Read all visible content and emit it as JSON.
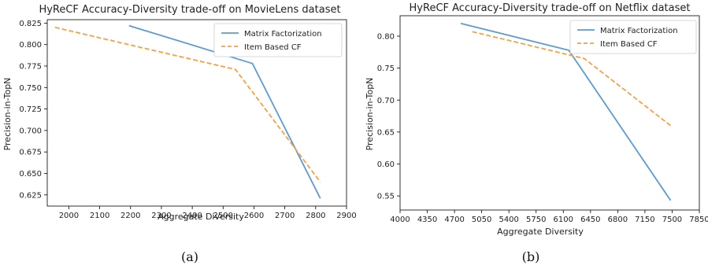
{
  "captions": [
    "(a)",
    "(b)"
  ],
  "chart_data": [
    {
      "type": "line",
      "title": "HyReCF Accuracy-Diversity trade-off on MovieLens dataset",
      "xlabel": "Aggregate Diversity",
      "ylabel": "Precision-in-TopN",
      "xlim": [
        1930,
        2900
      ],
      "ylim": [
        0.612,
        0.829
      ],
      "xticks": [
        2000,
        2100,
        2200,
        2300,
        2400,
        2500,
        2600,
        2700,
        2800,
        2900
      ],
      "yticks": [
        0.625,
        0.65,
        0.675,
        0.7,
        0.725,
        0.75,
        0.775,
        0.8,
        0.825
      ],
      "xtick_labels": [
        "2000",
        "2100",
        "2200",
        "2300",
        "2400",
        "2500",
        "2600",
        "2700",
        "2800",
        "2900"
      ],
      "ytick_labels": [
        "0.625",
        "0.650",
        "0.675",
        "0.700",
        "0.725",
        "0.750",
        "0.775",
        "0.800",
        "0.825"
      ],
      "legend": "top-right",
      "grid": false,
      "series": [
        {
          "name": "Matrix Factorization",
          "color": "#5b9bd5",
          "dash": "solid",
          "x": [
            2195,
            2595,
            2815
          ],
          "y": [
            0.822,
            0.778,
            0.621
          ]
        },
        {
          "name": "Item Based CF",
          "color": "#f5a142",
          "dash": "dashed",
          "x": [
            1955,
            2540,
            2815
          ],
          "y": [
            0.82,
            0.771,
            0.64
          ]
        }
      ]
    },
    {
      "type": "line",
      "title": "HyReCF Accuracy-Diversity trade-off on Netflix dataset",
      "xlabel": "Aggregate Diversity",
      "ylabel": "Precision-in-TopN",
      "xlim": [
        4000,
        7850
      ],
      "ylim": [
        0.528,
        0.832
      ],
      "xticks": [
        4000,
        4350,
        4700,
        5050,
        5400,
        5750,
        6100,
        6450,
        6800,
        7150,
        7500,
        7850
      ],
      "yticks": [
        0.55,
        0.6,
        0.65,
        0.7,
        0.75,
        0.8
      ],
      "xtick_labels": [
        "4000",
        "4350",
        "4700",
        "5050",
        "5400",
        "5750",
        "6100",
        "6450",
        "6800",
        "7150",
        "7500",
        "7850"
      ],
      "ytick_labels": [
        "0.55",
        "0.60",
        "0.65",
        "0.70",
        "0.75",
        "0.80"
      ],
      "legend": "top-right",
      "grid": false,
      "series": [
        {
          "name": "Matrix Factorization",
          "color": "#5b9bd5",
          "dash": "solid",
          "x": [
            4780,
            6170,
            7480
          ],
          "y": [
            0.82,
            0.778,
            0.543
          ]
        },
        {
          "name": "Item Based CF",
          "color": "#f5a142",
          "dash": "dashed",
          "x": [
            4930,
            6370,
            7480
          ],
          "y": [
            0.807,
            0.765,
            0.66
          ]
        }
      ]
    }
  ]
}
